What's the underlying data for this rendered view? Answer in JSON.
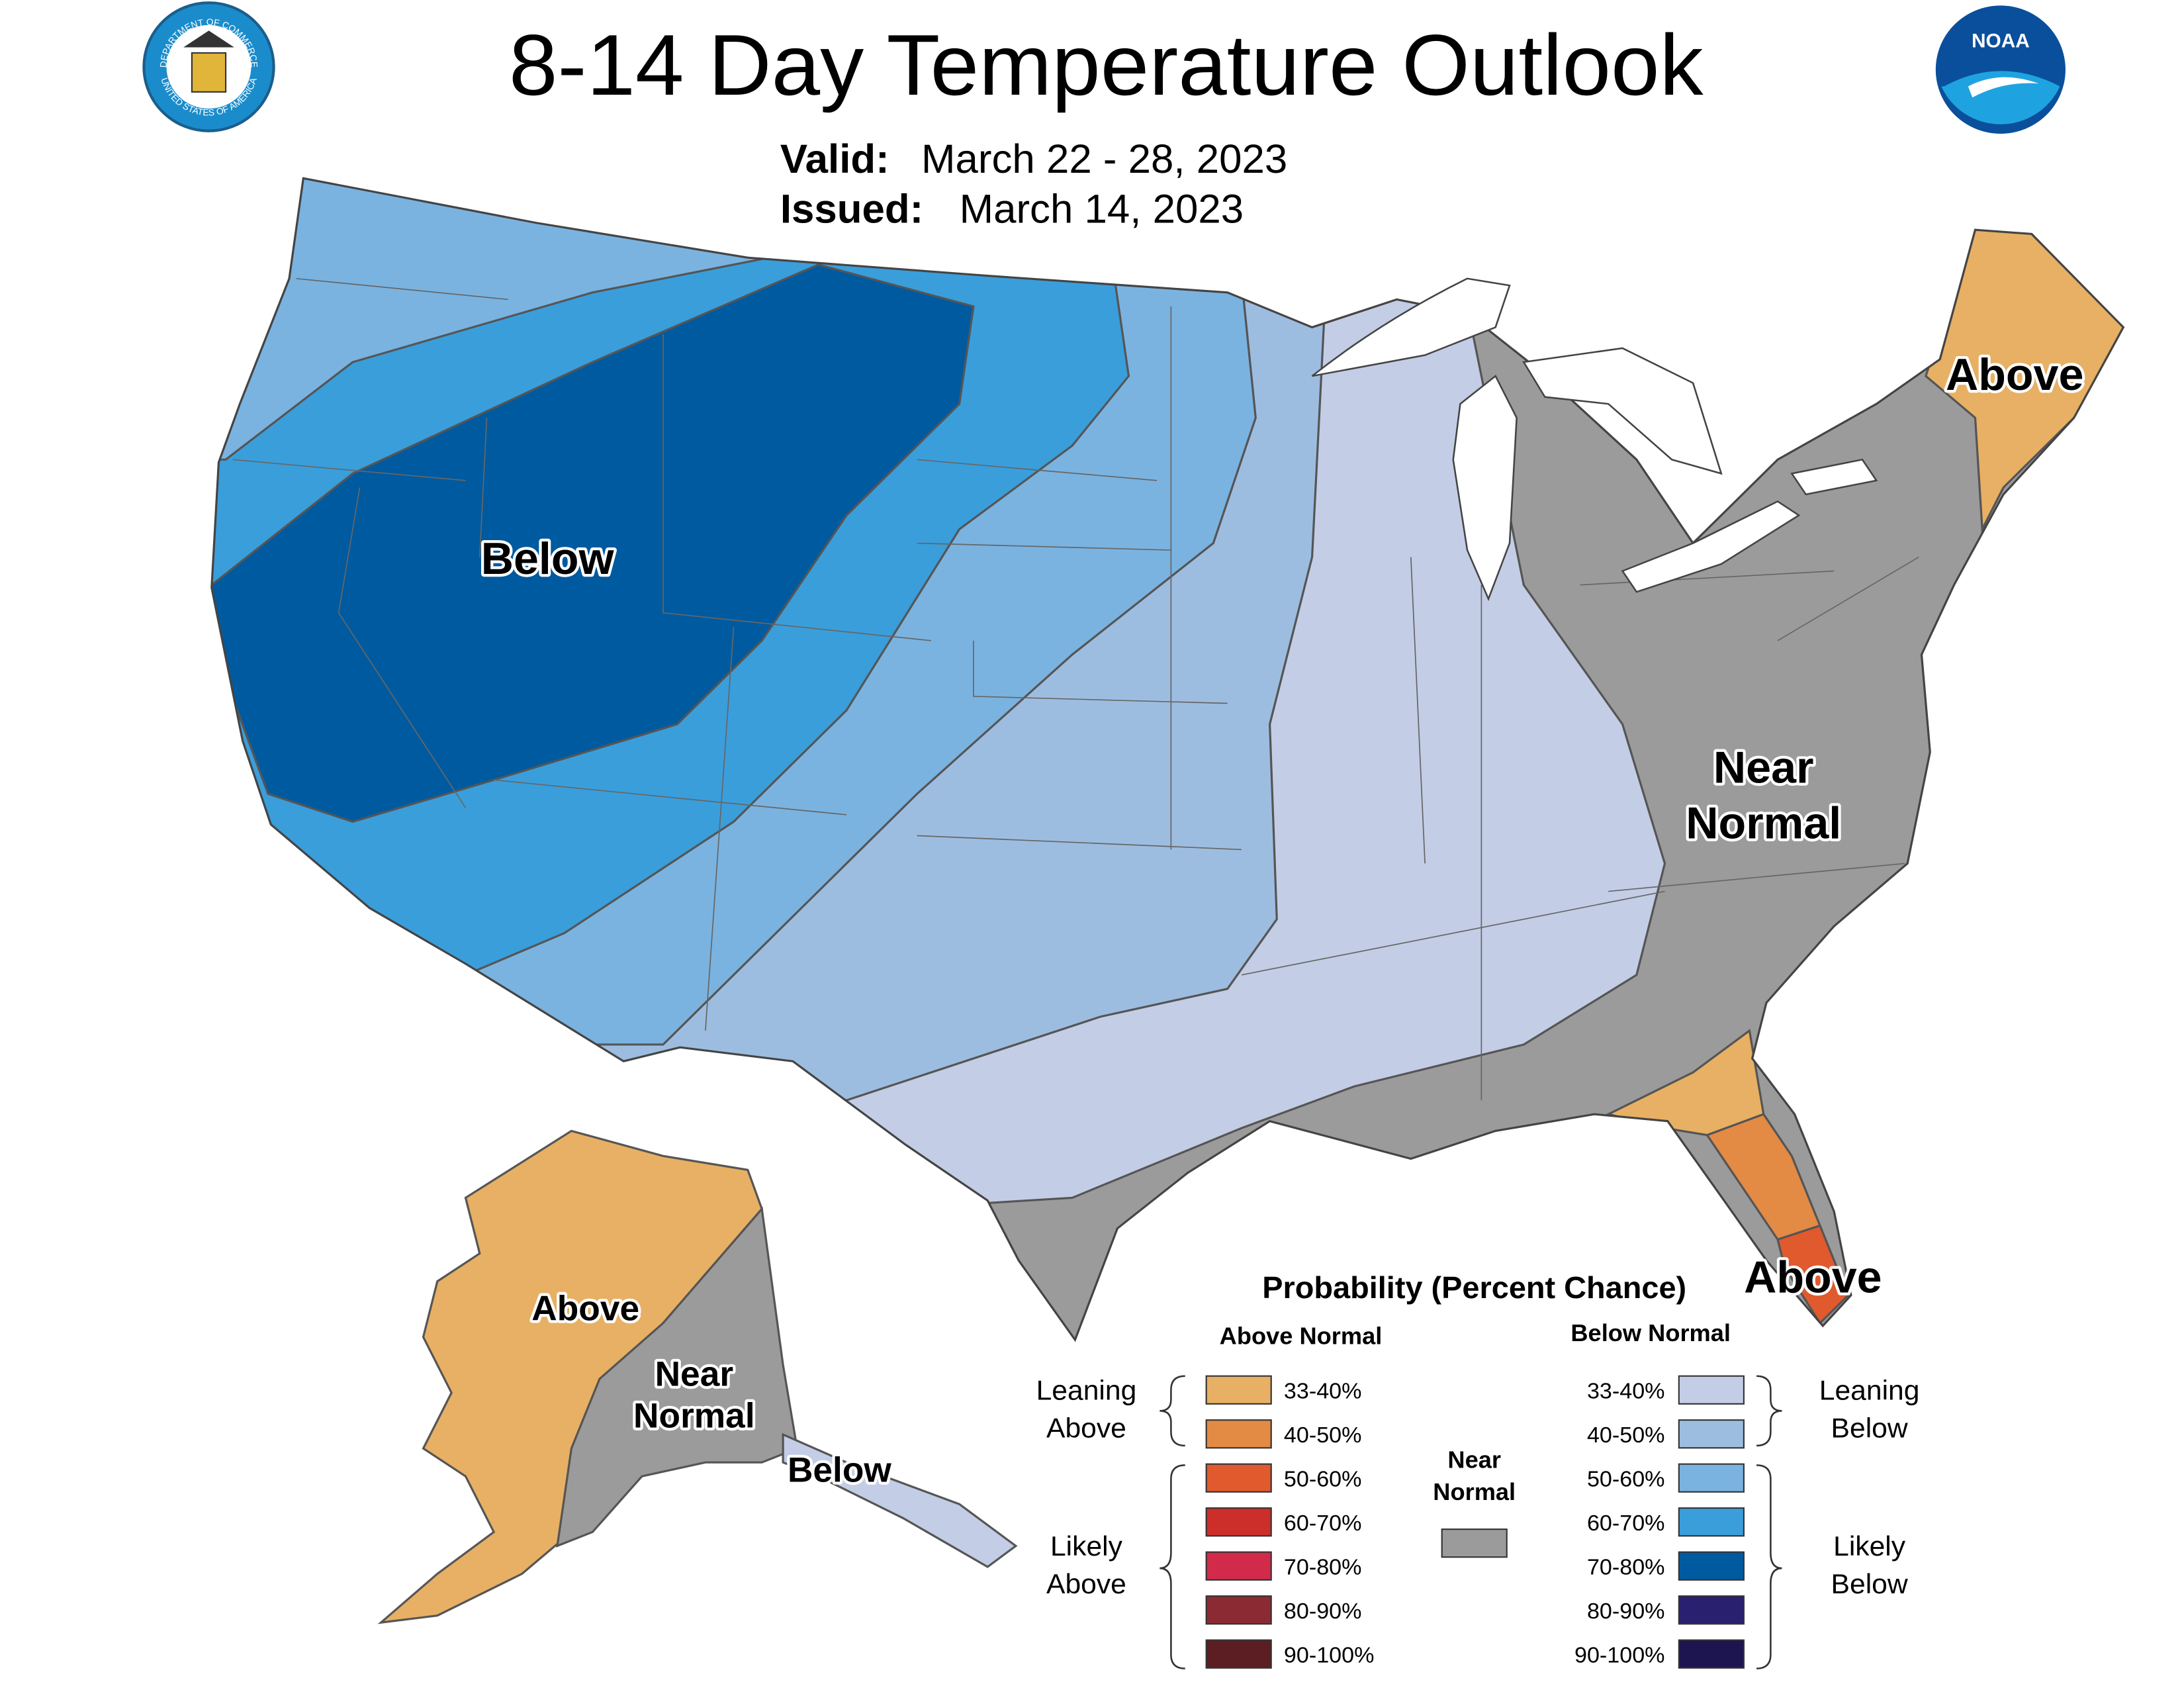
{
  "header": {
    "title": "8-14 Day Temperature Outlook",
    "valid_label": "Valid:",
    "valid": "March 22 - 28, 2023",
    "issued_label": "Issued:",
    "issued": "March 14, 2023"
  },
  "logos": {
    "seal_top": "DEPARTMENT OF COMMERCE",
    "seal_bottom": "UNITED STATES OF AMERICA",
    "noaa": "NOAA"
  },
  "map_labels": {
    "conus_below": "Below",
    "northeast_above": "Above",
    "southeast_near": [
      "Near",
      "Normal"
    ],
    "florida_above": "Above",
    "alaska_above": "Above",
    "alaska_near": [
      "Near",
      "Normal"
    ],
    "alaska_below": "Below"
  },
  "legend": {
    "title": "Probability (Percent Chance)",
    "above_heading": "Above Normal",
    "below_heading": "Below Normal",
    "near_heading": [
      "Near",
      "Normal"
    ],
    "near_color": "#9b9b9b",
    "leaning_above": [
      "Leaning",
      "Above"
    ],
    "likely_above": [
      "Likely",
      "Above"
    ],
    "leaning_below": [
      "Leaning",
      "Below"
    ],
    "likely_below": [
      "Likely",
      "Below"
    ],
    "above": [
      {
        "label": "33-40%",
        "color": "#e8b064"
      },
      {
        "label": "40-50%",
        "color": "#e38a45"
      },
      {
        "label": "50-60%",
        "color": "#e05a2e"
      },
      {
        "label": "60-70%",
        "color": "#cc2f2a"
      },
      {
        "label": "70-80%",
        "color": "#d22a4a"
      },
      {
        "label": "80-90%",
        "color": "#8c2a33"
      },
      {
        "label": "90-100%",
        "color": "#5c1e22"
      }
    ],
    "below": [
      {
        "label": "33-40%",
        "color": "#c3cde6"
      },
      {
        "label": "40-50%",
        "color": "#9dbde0"
      },
      {
        "label": "50-60%",
        "color": "#7ab3e0"
      },
      {
        "label": "60-70%",
        "color": "#3a9edb"
      },
      {
        "label": "70-80%",
        "color": "#005aa0"
      },
      {
        "label": "80-90%",
        "color": "#2a2070"
      },
      {
        "label": "90-100%",
        "color": "#1c1550"
      }
    ]
  }
}
